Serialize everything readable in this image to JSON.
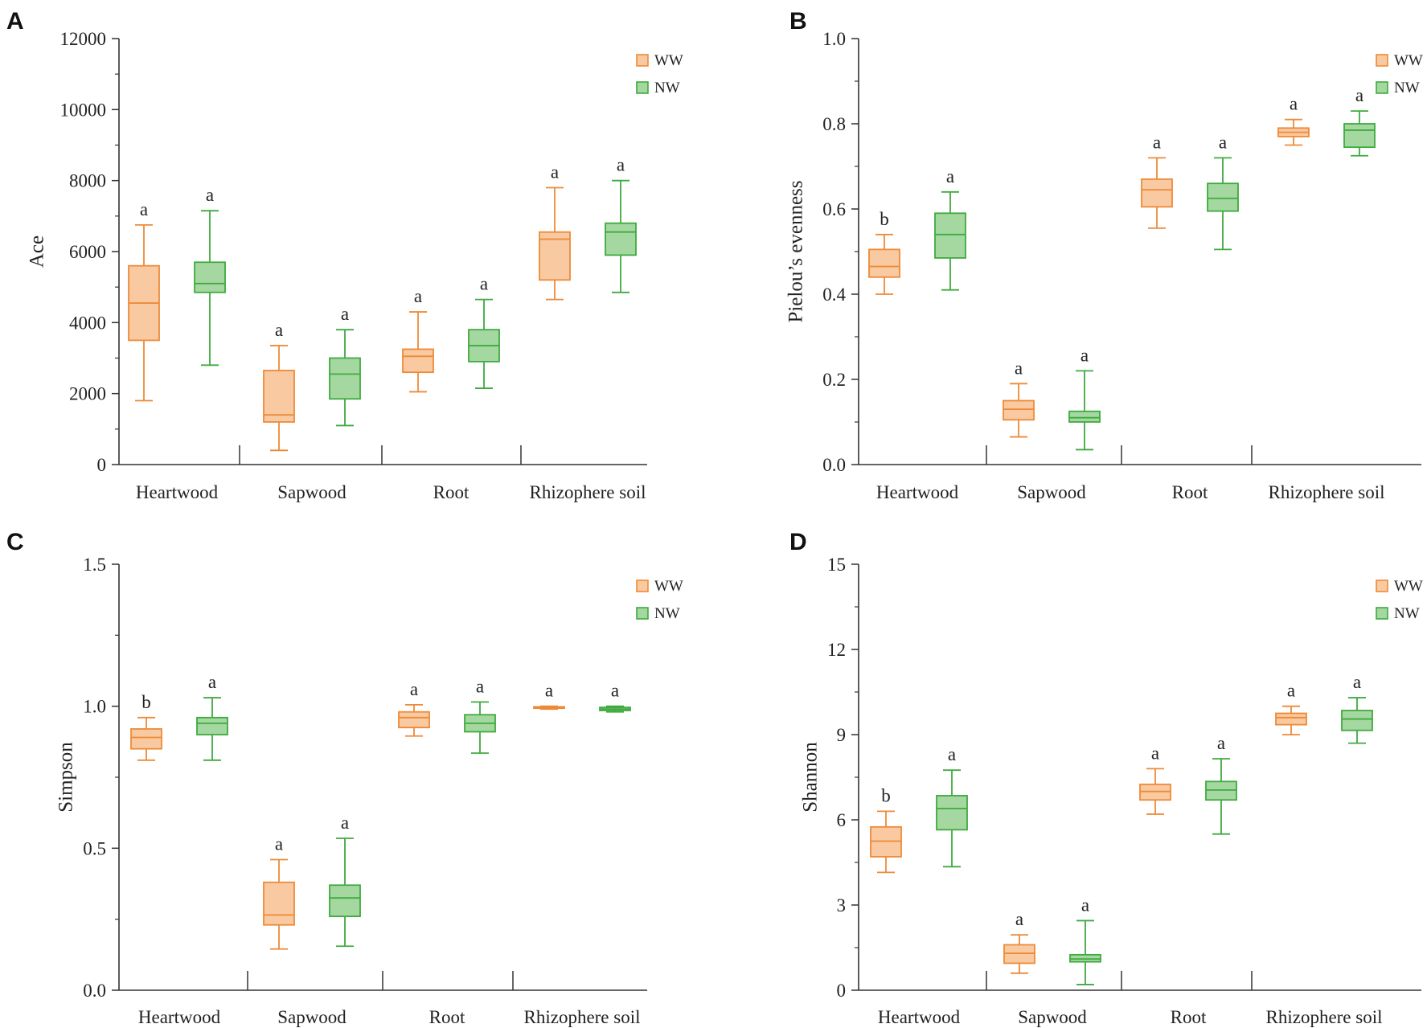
{
  "colors": {
    "WW": "#ee8a37",
    "WW_fill": "#f9c9a1",
    "NW": "#3faa3f",
    "NW_fill": "#a4d8a0",
    "axis": "#333333"
  },
  "legend": [
    "WW",
    "NW"
  ],
  "categories": [
    "Heartwood",
    "Sapwood",
    "Root",
    "Rhizophere soil"
  ],
  "chart_data": [
    {
      "panel": "A",
      "type": "box",
      "ylabel": "Ace",
      "ylim": [
        0,
        12000
      ],
      "yticks": [
        0,
        2000,
        4000,
        6000,
        8000,
        10000,
        12000
      ],
      "ytick_labels": [
        "0",
        "2000",
        "4000",
        "6000",
        "8000",
        "10000",
        "12000"
      ],
      "categories": [
        "Heartwood",
        "Sapwood",
        "Root",
        "Rhizophere soil"
      ],
      "series": [
        {
          "name": "WW",
          "boxes": [
            {
              "min": 1800,
              "q1": 3500,
              "median": 4550,
              "q3": 5600,
              "max": 6750,
              "sig": "a"
            },
            {
              "min": 400,
              "q1": 1200,
              "median": 1400,
              "q3": 2650,
              "max": 3350,
              "sig": "a"
            },
            {
              "min": 2050,
              "q1": 2600,
              "median": 3050,
              "q3": 3250,
              "max": 4300,
              "sig": "a"
            },
            {
              "min": 4650,
              "q1": 5200,
              "median": 6350,
              "q3": 6550,
              "max": 7800,
              "sig": "a"
            }
          ]
        },
        {
          "name": "NW",
          "boxes": [
            {
              "min": 2800,
              "q1": 4850,
              "median": 5100,
              "q3": 5700,
              "max": 7150,
              "sig": "a"
            },
            {
              "min": 1100,
              "q1": 1850,
              "median": 2550,
              "q3": 3000,
              "max": 3800,
              "sig": "a"
            },
            {
              "min": 2150,
              "q1": 2900,
              "median": 3350,
              "q3": 3800,
              "max": 4650,
              "sig": "a"
            },
            {
              "min": 4850,
              "q1": 5900,
              "median": 6550,
              "q3": 6800,
              "max": 8000,
              "sig": "a"
            }
          ]
        }
      ]
    },
    {
      "panel": "B",
      "type": "box",
      "ylabel": "Pielou’s evenness",
      "ylim": [
        0,
        1.0
      ],
      "yticks": [
        0,
        0.2,
        0.4,
        0.6,
        0.8,
        1.0
      ],
      "ytick_labels": [
        "0.0",
        "0.2",
        "0.4",
        "0.6",
        "0.8",
        "1.0"
      ],
      "categories": [
        "Heartwood",
        "Sapwood",
        "Root",
        "Rhizophere soil"
      ],
      "series": [
        {
          "name": "WW",
          "boxes": [
            {
              "min": 0.4,
              "q1": 0.44,
              "median": 0.465,
              "q3": 0.505,
              "max": 0.54,
              "sig": "b"
            },
            {
              "min": 0.065,
              "q1": 0.105,
              "median": 0.13,
              "q3": 0.15,
              "max": 0.19,
              "sig": "a"
            },
            {
              "min": 0.555,
              "q1": 0.605,
              "median": 0.645,
              "q3": 0.67,
              "max": 0.72,
              "sig": "a"
            },
            {
              "min": 0.75,
              "q1": 0.77,
              "median": 0.78,
              "q3": 0.79,
              "max": 0.81,
              "sig": "a"
            }
          ]
        },
        {
          "name": "NW",
          "boxes": [
            {
              "min": 0.41,
              "q1": 0.485,
              "median": 0.54,
              "q3": 0.59,
              "max": 0.64,
              "sig": "a"
            },
            {
              "min": 0.035,
              "q1": 0.1,
              "median": 0.11,
              "q3": 0.125,
              "max": 0.22,
              "sig": "a"
            },
            {
              "min": 0.505,
              "q1": 0.595,
              "median": 0.625,
              "q3": 0.66,
              "max": 0.72,
              "sig": "a"
            },
            {
              "min": 0.725,
              "q1": 0.745,
              "median": 0.785,
              "q3": 0.8,
              "max": 0.83,
              "sig": "a"
            }
          ]
        }
      ]
    },
    {
      "panel": "C",
      "type": "box",
      "ylabel": "Simpson",
      "ylim": [
        0,
        1.5
      ],
      "yticks": [
        0,
        0.5,
        1.0,
        1.5
      ],
      "ytick_labels": [
        "0.0",
        "0.5",
        "1.0",
        "1.5"
      ],
      "categories": [
        "Heartwood",
        "Sapwood",
        "Root",
        "Rhizophere soil"
      ],
      "series": [
        {
          "name": "WW",
          "boxes": [
            {
              "min": 0.81,
              "q1": 0.85,
              "median": 0.89,
              "q3": 0.92,
              "max": 0.96,
              "sig": "b"
            },
            {
              "min": 0.145,
              "q1": 0.23,
              "median": 0.265,
              "q3": 0.38,
              "max": 0.46,
              "sig": "a"
            },
            {
              "min": 0.895,
              "q1": 0.925,
              "median": 0.96,
              "q3": 0.98,
              "max": 1.005,
              "sig": "a"
            },
            {
              "min": 0.99,
              "q1": 0.993,
              "median": 0.996,
              "q3": 0.998,
              "max": 1.0,
              "sig": "a"
            }
          ]
        },
        {
          "name": "NW",
          "boxes": [
            {
              "min": 0.81,
              "q1": 0.9,
              "median": 0.94,
              "q3": 0.96,
              "max": 1.03,
              "sig": "a"
            },
            {
              "min": 0.155,
              "q1": 0.26,
              "median": 0.325,
              "q3": 0.37,
              "max": 0.535,
              "sig": "a"
            },
            {
              "min": 0.835,
              "q1": 0.91,
              "median": 0.94,
              "q3": 0.97,
              "max": 1.015,
              "sig": "a"
            },
            {
              "min": 0.98,
              "q1": 0.985,
              "median": 0.99,
              "q3": 0.996,
              "max": 1.0,
              "sig": "a"
            }
          ]
        }
      ]
    },
    {
      "panel": "D",
      "type": "box",
      "ylabel": "Shannon",
      "ylim": [
        0,
        15
      ],
      "yticks": [
        0,
        3,
        6,
        9,
        12,
        15
      ],
      "ytick_labels": [
        "0",
        "3",
        "6",
        "9",
        "12",
        "15"
      ],
      "categories": [
        "Heartwood",
        "Sapwood",
        "Root",
        "Rhizophere soil"
      ],
      "series": [
        {
          "name": "WW",
          "boxes": [
            {
              "min": 4.15,
              "q1": 4.7,
              "median": 5.25,
              "q3": 5.75,
              "max": 6.3,
              "sig": "b"
            },
            {
              "min": 0.6,
              "q1": 0.95,
              "median": 1.3,
              "q3": 1.6,
              "max": 1.95,
              "sig": "a"
            },
            {
              "min": 6.2,
              "q1": 6.7,
              "median": 7.0,
              "q3": 7.25,
              "max": 7.8,
              "sig": "a"
            },
            {
              "min": 9.0,
              "q1": 9.35,
              "median": 9.6,
              "q3": 9.75,
              "max": 10.0,
              "sig": "a"
            }
          ]
        },
        {
          "name": "NW",
          "boxes": [
            {
              "min": 4.35,
              "q1": 5.65,
              "median": 6.4,
              "q3": 6.85,
              "max": 7.75,
              "sig": "a"
            },
            {
              "min": 0.2,
              "q1": 1.0,
              "median": 1.1,
              "q3": 1.25,
              "max": 2.45,
              "sig": "a"
            },
            {
              "min": 5.5,
              "q1": 6.7,
              "median": 7.05,
              "q3": 7.35,
              "max": 8.15,
              "sig": "a"
            },
            {
              "min": 8.7,
              "q1": 9.15,
              "median": 9.55,
              "q3": 9.85,
              "max": 10.3,
              "sig": "a"
            }
          ]
        }
      ]
    }
  ]
}
